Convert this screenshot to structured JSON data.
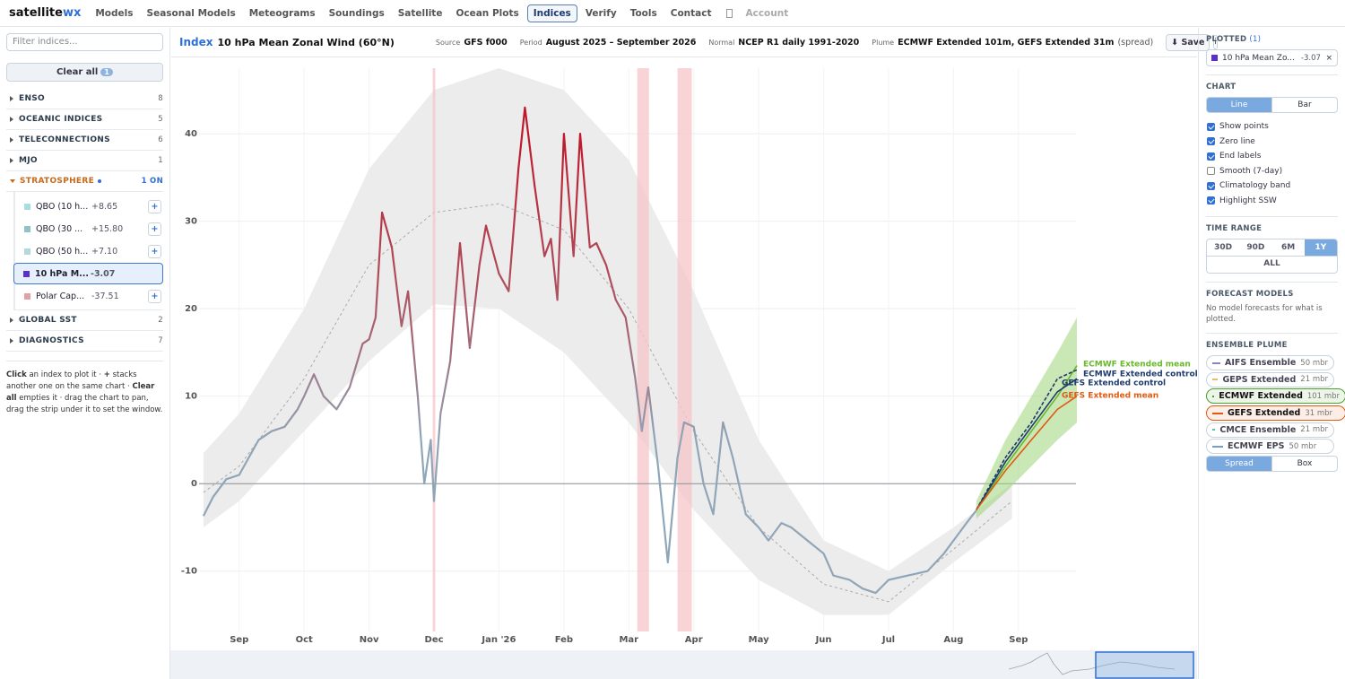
{
  "nav": {
    "brand": "satellite",
    "brand_accent": "wx",
    "items": [
      "Models",
      "Seasonal Models",
      "Meteograms",
      "Soundings",
      "Satellite",
      "Ocean Plots",
      "Indices",
      "Verify",
      "Tools",
      "Contact"
    ],
    "active": "Indices",
    "account": "Account"
  },
  "sidebar": {
    "filter_placeholder": "Filter indices...",
    "clear_all": "Clear all",
    "clear_count": 1,
    "add_label": "+",
    "groups": [
      {
        "name": "ENSO",
        "count": 8
      },
      {
        "name": "OCEANIC INDICES",
        "count": 5
      },
      {
        "name": "TELECONNECTIONS",
        "count": 6
      },
      {
        "name": "MJO",
        "count": 1
      },
      {
        "name": "STRATOSPHERE",
        "status": "1 ON",
        "items": [
          {
            "name": "QBO (10 h...",
            "value": "+8.65",
            "color": "#a6dfe3",
            "selected": false
          },
          {
            "name": "QBO (30 ...",
            "value": "+15.80",
            "color": "#8fc3c8",
            "selected": false
          },
          {
            "name": "QBO (50 h...",
            "value": "+7.10",
            "color": "#b3d9df",
            "selected": false
          },
          {
            "name": "10 hPa M...",
            "value": "-3.07",
            "color": "#5b2fc9",
            "selected": true
          },
          {
            "name": "Polar Cap...",
            "value": "-37.51",
            "color": "#e0a0a6",
            "selected": false
          }
        ]
      },
      {
        "name": "GLOBAL SST",
        "count": 2
      },
      {
        "name": "DIAGNOSTICS",
        "count": 7
      }
    ],
    "help": [
      {
        "text": "Click",
        "bold": true
      },
      {
        "text": " an index to plot it · ",
        "bold": false
      },
      {
        "text": "+",
        "bold": true
      },
      {
        "text": " stacks another one on the same chart · ",
        "bold": false
      },
      {
        "text": "Clear all",
        "bold": true
      },
      {
        "text": " empties it · drag the chart to pan, drag the strip under it to set the window.",
        "bold": false
      }
    ]
  },
  "header": {
    "index_label": "Index",
    "title": "10 hPa Mean Zonal Wind (60°N)",
    "meta": [
      {
        "key": "Source",
        "value": "GFS f000"
      },
      {
        "key": "Period",
        "value": "August 2025 – September 2026"
      },
      {
        "key": "Normal",
        "value": "NCEP R1 daily 1991-2020"
      },
      {
        "key": "Plume",
        "value": "ECMWF Extended 101m, GEFS Extended 31m",
        "note": "(spread)"
      }
    ],
    "save": "⬇ Save",
    "info": "i"
  },
  "panel": {
    "plotted": {
      "heading": "PLOTTED",
      "count": "(1)",
      "item": "10 hPa Mean Zo...",
      "value": "-3.07",
      "color": "#5b2fc9",
      "remove": "×"
    },
    "chart": {
      "heading": "CHART",
      "modes": [
        "Line",
        "Bar"
      ],
      "active": "Line",
      "checks": [
        {
          "label": "Show points",
          "checked": true
        },
        {
          "label": "Zero line",
          "checked": true
        },
        {
          "label": "End labels",
          "checked": true
        },
        {
          "label": "Smooth (7-day)",
          "checked": false
        },
        {
          "label": "Climatology band",
          "checked": true
        },
        {
          "label": "Highlight SSW",
          "checked": true
        }
      ]
    },
    "time_range": {
      "heading": "TIME RANGE",
      "options": [
        "30D",
        "90D",
        "6M",
        "1Y"
      ],
      "all": "ALL",
      "active": "1Y"
    },
    "forecast_models": {
      "heading": "FORECAST MODELS",
      "text": "No model forecasts for what is plotted."
    },
    "ensemble_plume": {
      "heading": "ENSEMBLE PLUME",
      "models": [
        {
          "name": "AIFS Ensemble",
          "members": "50 mbr",
          "color": "#8a84c8",
          "active": false
        },
        {
          "name": "GEPS Extended",
          "members": "21 mbr",
          "color": "#f0b860",
          "active": false
        },
        {
          "name": "ECMWF Extended",
          "members": "101 mbr",
          "color": "#4aa02c",
          "active": true
        },
        {
          "name": "GEFS Extended",
          "members": "31 mbr",
          "color": "#e05a10",
          "active": true
        },
        {
          "name": "CMCE Ensemble",
          "members": "21 mbr",
          "color": "#5bbfb0",
          "active": false
        },
        {
          "name": "ECMWF EPS",
          "members": "50 mbr",
          "color": "#7a9cc8",
          "active": false
        }
      ],
      "modes": [
        "Spread",
        "Box"
      ],
      "active": "Spread"
    }
  },
  "chart_data": {
    "type": "line",
    "x": [
      0.45,
      0.6,
      0.8,
      1.0,
      1.15,
      1.3,
      1.5,
      1.7,
      1.9,
      2.0,
      2.15,
      2.3,
      2.5,
      2.7,
      2.9,
      3.0,
      3.1,
      3.2,
      3.35,
      3.5,
      3.6,
      3.75,
      3.85,
      3.95,
      4.0,
      4.1,
      4.25,
      4.4,
      4.55,
      4.7,
      4.8,
      5.0,
      5.15,
      5.3,
      5.4,
      5.55,
      5.7,
      5.8,
      5.9,
      6.0,
      6.15,
      6.25,
      6.4,
      6.5,
      6.65,
      6.8,
      6.95,
      7.1,
      7.2,
      7.3,
      7.45,
      7.6,
      7.75,
      7.85,
      8.0,
      8.15,
      8.3,
      8.45,
      8.6,
      8.8,
      9.0,
      9.15,
      9.35,
      9.5,
      9.75,
      10.0,
      10.15,
      10.4,
      10.6,
      10.8,
      11.0,
      11.3,
      11.6,
      11.85,
      12.0,
      12.2,
      12.35
    ],
    "values": [
      -3.7,
      -1.5,
      0.5,
      1,
      3,
      5,
      6,
      6.5,
      8.5,
      10,
      12.5,
      10,
      8.5,
      11,
      16,
      16.5,
      19,
      31,
      27,
      18,
      22,
      10,
      0,
      5,
      -2,
      8,
      14,
      27.5,
      15.5,
      25,
      29.5,
      24,
      22,
      36,
      43,
      34,
      26,
      28,
      21,
      40,
      26,
      40,
      27,
      27.5,
      25,
      21,
      19,
      12,
      6,
      11,
      2,
      -9,
      3,
      7,
      6.5,
      0,
      -3.5,
      7,
      3,
      -3.5,
      -5,
      -6.5,
      -4.5,
      -5,
      -6.5,
      -8,
      -10.5,
      -11,
      -12,
      -12.5,
      -11,
      -10.5,
      -10,
      -8,
      -6.5,
      -4.5,
      -3.07
    ],
    "color_scale": [
      {
        "value": 40,
        "color": "#c0182a"
      },
      {
        "value": 18,
        "color": "#a8606e"
      },
      {
        "value": 5,
        "color": "#8fa5b8"
      }
    ],
    "climatology": {
      "x": [
        0.45,
        1,
        2,
        3,
        4,
        5,
        6,
        7,
        8,
        9,
        10,
        11,
        12,
        12.9
      ],
      "upper": [
        3.5,
        8,
        20,
        36,
        45,
        47.5,
        45,
        37,
        22,
        5,
        -6.5,
        -10,
        -5,
        0
      ],
      "lower": [
        -5,
        -2,
        6,
        14,
        20.5,
        20,
        15,
        7,
        -3,
        -11,
        -15,
        -15,
        -9,
        -4
      ],
      "mean": [
        -1,
        2,
        12,
        25,
        31,
        32,
        29,
        20,
        6,
        -5,
        -11.5,
        -13.5,
        -7.5,
        -2
      ],
      "color": "#ececec",
      "mean_color": "#aaaaaa"
    },
    "ssw_periods": [
      [
        3.98,
        4.02
      ],
      [
        7.13,
        7.31
      ],
      [
        7.75,
        7.97
      ]
    ],
    "ssw_color": "#f7c6ca",
    "plume_spread": {
      "x": [
        12.35,
        12.8,
        13.2,
        13.6,
        13.9
      ],
      "upper": [
        -2,
        5,
        10,
        15,
        19
      ],
      "lower": [
        -4,
        -1,
        2,
        5,
        7
      ],
      "color": "#9fd67a"
    },
    "series": [
      {
        "name": "ECMWF Extended mean",
        "color": "#6ab82c",
        "dashed": false,
        "x": [
          12.35,
          12.8,
          13.2,
          13.6,
          13.9
        ],
        "values": [
          -3,
          2,
          6,
          10,
          13.5
        ]
      },
      {
        "name": "ECMWF Extended control",
        "color": "#1e3a6e",
        "dashed": true,
        "x": [
          12.35,
          12.8,
          13.2,
          13.6,
          13.9
        ],
        "values": [
          -3,
          3,
          7,
          12,
          13
        ]
      },
      {
        "name": "GEFS Extended control",
        "color": "#1e3a6e",
        "dashed": false,
        "x": [
          12.35,
          12.8,
          13.2,
          13.6,
          13.9
        ],
        "values": [
          -3,
          2.5,
          6.5,
          10.5,
          12
        ]
      },
      {
        "name": "GEFS Extended mean",
        "color": "#e05a10",
        "dashed": false,
        "x": [
          12.35,
          12.8,
          13.2,
          13.6,
          13.9
        ],
        "values": [
          -3,
          1.5,
          5,
          8.5,
          10
        ]
      }
    ],
    "xlim": [
      -0.06,
      15.75
    ],
    "ylim": [
      -16.9,
      47.5
    ],
    "xticks": [
      {
        "value": 1,
        "label": "Sep"
      },
      {
        "value": 2,
        "label": "Oct"
      },
      {
        "value": 3,
        "label": "Nov"
      },
      {
        "value": 4,
        "label": "Dec"
      },
      {
        "value": 5,
        "label": "Jan '26"
      },
      {
        "value": 6,
        "label": "Feb"
      },
      {
        "value": 7,
        "label": "Mar"
      },
      {
        "value": 8,
        "label": "Apr"
      },
      {
        "value": 9,
        "label": "May"
      },
      {
        "value": 10,
        "label": "Jun"
      },
      {
        "value": 11,
        "label": "Jul"
      },
      {
        "value": 12,
        "label": "Aug"
      },
      {
        "value": 13,
        "label": "Sep"
      }
    ],
    "yticks": [
      -10,
      0,
      10,
      20,
      30,
      40
    ],
    "grid": true,
    "zero_line": true
  }
}
